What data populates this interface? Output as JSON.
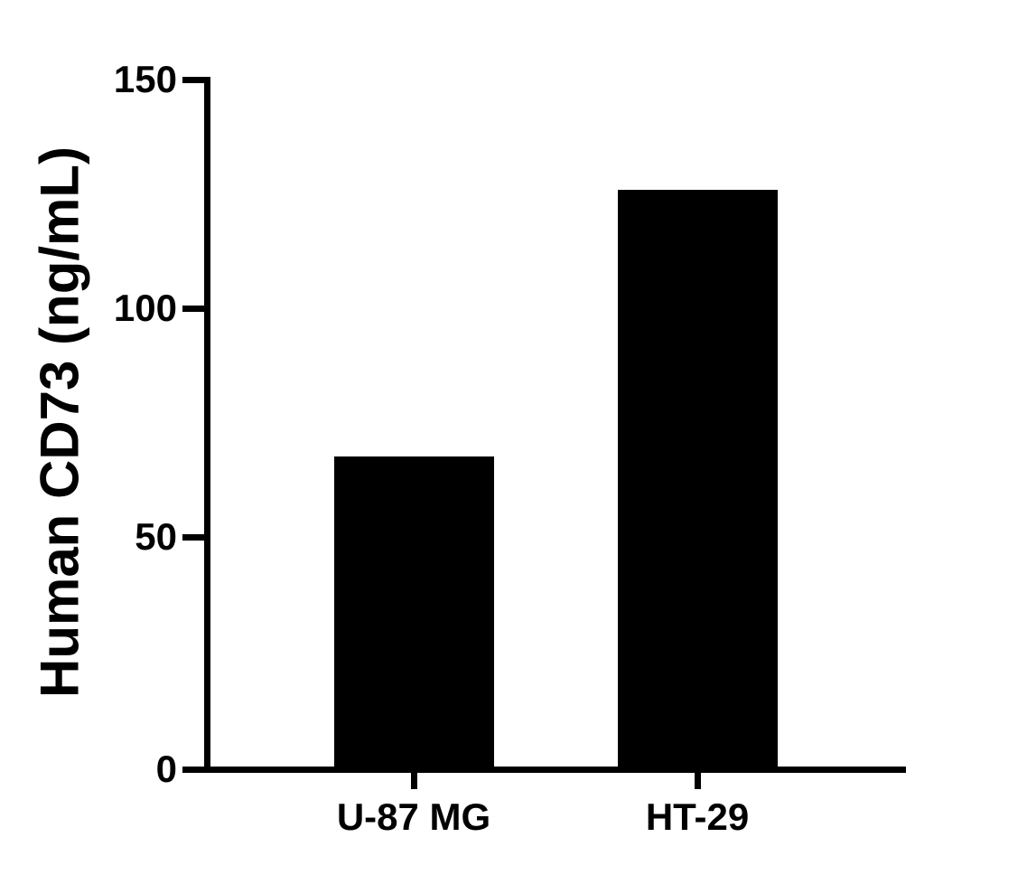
{
  "figure": {
    "background_color": "#ffffff",
    "foreground_color": "#000000"
  },
  "chart_data": {
    "type": "bar",
    "categories": [
      "U-87 MG",
      "HT-29"
    ],
    "values": [
      68,
      126
    ],
    "title": "",
    "xlabel": "",
    "ylabel": "Human CD73 (ng/mL)",
    "ylim": [
      0,
      150
    ],
    "yticks": [
      0,
      50,
      100,
      150
    ],
    "bar_color": "#000000",
    "axis_color": "#000000",
    "grid": false,
    "legend": false
  }
}
